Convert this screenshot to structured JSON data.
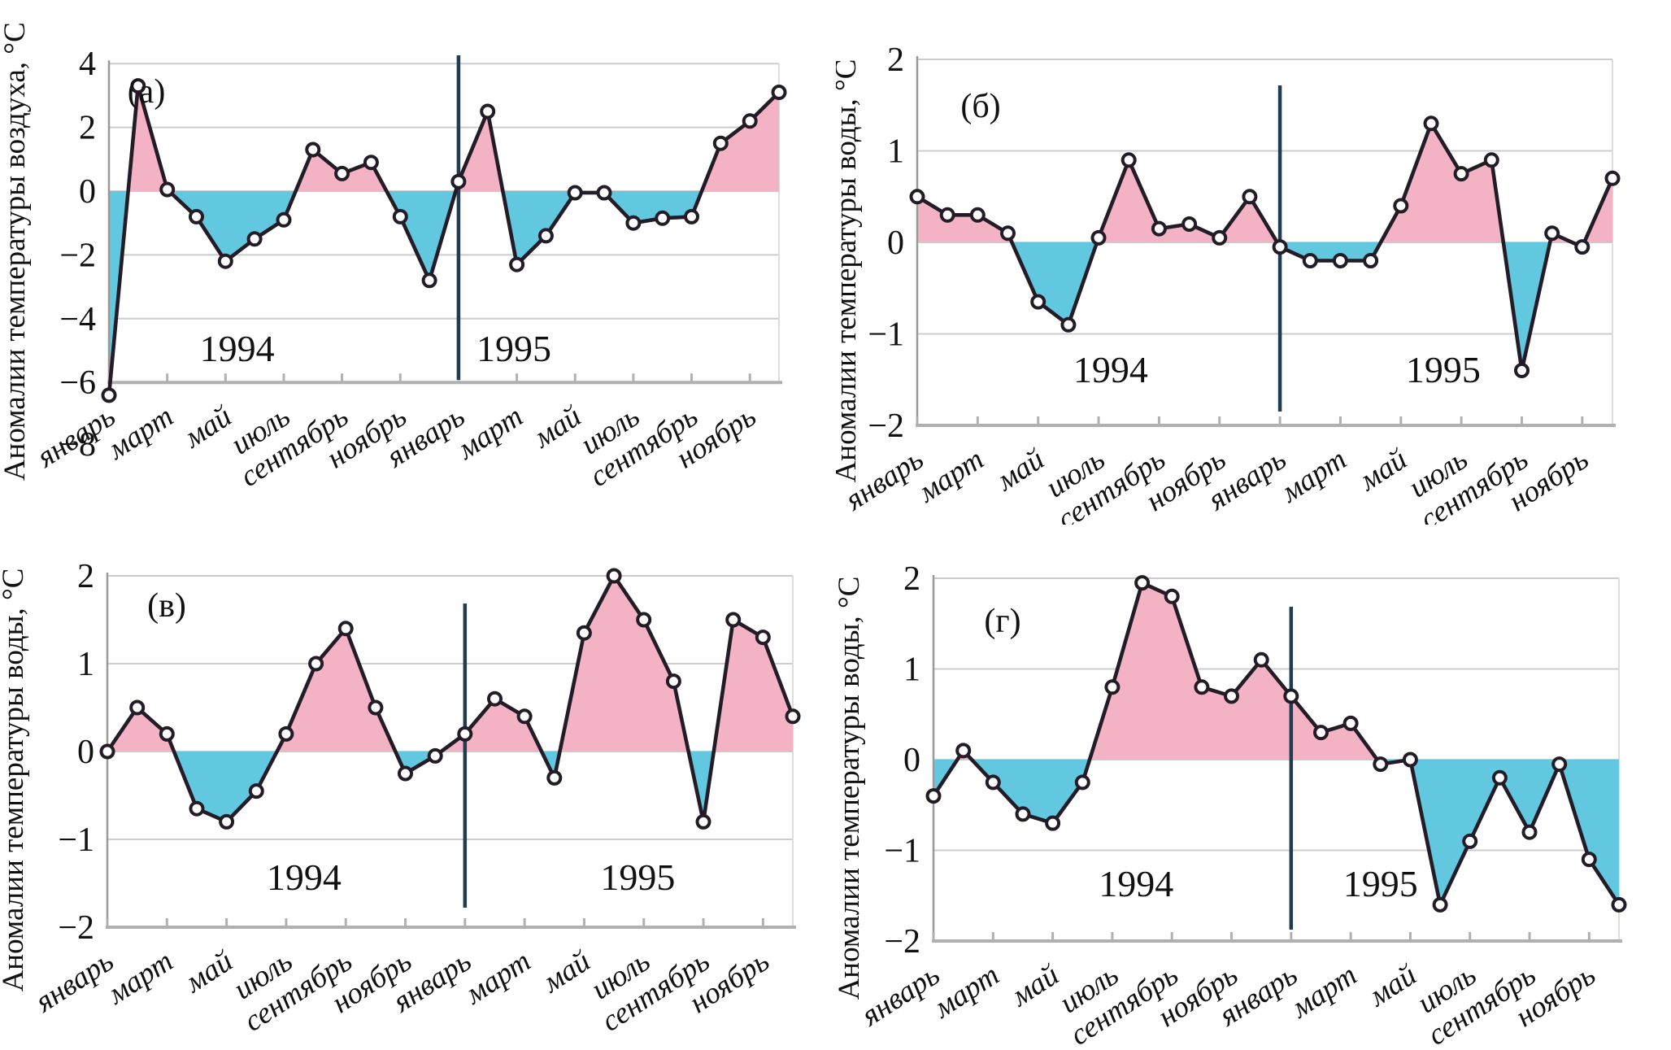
{
  "figure": {
    "description": "Четыре панели: аномалии температуры воздуха и воды по месяцам 1994–1995",
    "years": [
      "1994",
      "1995"
    ]
  },
  "colors": {
    "positive_fill": "#f3b3c5",
    "negative_fill": "#62c8e0",
    "curve": "#231c26",
    "marker_fill": "#ffffff",
    "year_divider": "#1e3d52",
    "gridline": "#cccccc",
    "x_axis": "#b0b0b0",
    "y_axis": "#999999",
    "right_border": "#dddddd",
    "text": "#111111"
  },
  "chart_data": [
    {
      "id": "a",
      "panel_label": "(а)",
      "type": "line",
      "ylabel": "Аномалии температуры воздуха, °C",
      "x_tick_labels": [
        "январь",
        "март",
        "май",
        "июль",
        "сентябрь",
        "ноябрь",
        "январь",
        "март",
        "май",
        "июль",
        "сентябрь",
        "ноябрь"
      ],
      "year_labels": [
        "1994",
        "1995"
      ],
      "y_ticks": [
        4,
        2,
        0,
        -2,
        -4,
        -6,
        -8
      ],
      "ylim": [
        -8,
        4
      ],
      "grid": true,
      "legend": "none",
      "fill_rule": "pink above zero, blue below zero",
      "series": [
        {
          "name": "1994",
          "values": [
            -6.4,
            3.3,
            0.05,
            -0.8,
            -2.2,
            -1.5,
            -0.9,
            1.3,
            0.55,
            0.9,
            -0.8,
            -2.8
          ]
        },
        {
          "name": "1995",
          "values": [
            0.3,
            2.5,
            -2.3,
            -1.4,
            -0.05,
            -0.05,
            -1.0,
            -0.85,
            -0.8,
            1.5,
            2.2,
            3.1
          ]
        }
      ]
    },
    {
      "id": "b",
      "panel_label": "(б)",
      "type": "line",
      "ylabel": "Аномалии температуры воды, °C",
      "x_tick_labels": [
        "январь",
        "март",
        "май",
        "июль",
        "сентябрь",
        "ноябрь",
        "январь",
        "март",
        "май",
        "июль",
        "сентябрь",
        "ноябрь"
      ],
      "year_labels": [
        "1994",
        "1995"
      ],
      "y_ticks": [
        2,
        1,
        0,
        -1,
        -2
      ],
      "ylim": [
        -2,
        2
      ],
      "grid": true,
      "legend": "none",
      "fill_rule": "pink above zero, blue below zero",
      "series": [
        {
          "name": "1994",
          "values": [
            0.5,
            0.3,
            0.3,
            0.1,
            -0.65,
            -0.9,
            0.05,
            0.9,
            0.15,
            0.2,
            0.05,
            0.5
          ]
        },
        {
          "name": "1995",
          "values": [
            -0.05,
            -0.2,
            -0.2,
            -0.2,
            0.4,
            1.3,
            0.75,
            0.9,
            -1.4,
            0.1,
            -0.05,
            0.7
          ]
        }
      ]
    },
    {
      "id": "v",
      "panel_label": "(в)",
      "type": "line",
      "ylabel": "Аномалии температуры воды, °C",
      "x_tick_labels": [
        "январь",
        "март",
        "май",
        "июль",
        "сентябрь",
        "ноябрь",
        "январь",
        "март",
        "май",
        "июль",
        "сентябрь",
        "ноябрь"
      ],
      "year_labels": [
        "1994",
        "1995"
      ],
      "y_ticks": [
        2,
        1,
        0,
        -1,
        -2
      ],
      "ylim": [
        -2,
        2
      ],
      "grid": true,
      "legend": "none",
      "fill_rule": "pink above zero, blue below zero",
      "series": [
        {
          "name": "1994",
          "values": [
            0.0,
            0.5,
            0.2,
            -0.65,
            -0.8,
            -0.45,
            0.2,
            1.0,
            1.4,
            0.5,
            -0.25,
            -0.05
          ]
        },
        {
          "name": "1995",
          "values": [
            0.2,
            0.6,
            0.4,
            -0.3,
            1.35,
            2.0,
            1.5,
            0.8,
            -0.8,
            1.5,
            1.3,
            0.4
          ]
        }
      ]
    },
    {
      "id": "g",
      "panel_label": "(г)",
      "type": "line",
      "ylabel": "Аномалии температуры воды, °C",
      "x_tick_labels": [
        "январь",
        "март",
        "май",
        "июль",
        "сентябрь",
        "ноябрь",
        "январь",
        "март",
        "май",
        "июль",
        "сентябрь",
        "ноябрь"
      ],
      "year_labels": [
        "1994",
        "1995"
      ],
      "y_ticks": [
        2,
        1,
        0,
        -1,
        -2
      ],
      "ylim": [
        -2,
        2
      ],
      "grid": true,
      "legend": "none",
      "fill_rule": "pink above zero, blue below zero",
      "series": [
        {
          "name": "1994",
          "values": [
            -0.4,
            0.1,
            -0.25,
            -0.6,
            -0.7,
            -0.25,
            0.8,
            1.95,
            1.8,
            0.8,
            0.7,
            1.1
          ]
        },
        {
          "name": "1995",
          "values": [
            0.7,
            0.3,
            0.4,
            -0.05,
            0.0,
            -1.6,
            -0.9,
            -0.2,
            -0.8,
            -0.05,
            -1.1,
            -1.6
          ]
        }
      ]
    }
  ]
}
